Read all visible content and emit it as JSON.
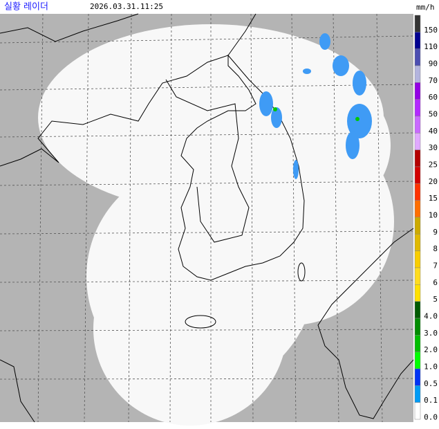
{
  "header": {
    "title": "실황 레이더",
    "time": "2026.03.31.11:25",
    "unit": "mm/h"
  },
  "legend": [
    {
      "label": "150",
      "color": "#333333"
    },
    {
      "label": "110",
      "color": "#000090"
    },
    {
      "label": "90",
      "color": "#4c4eb1"
    },
    {
      "label": "70",
      "color": "#b3b4de"
    },
    {
      "label": "60",
      "color": "#9300e4"
    },
    {
      "label": "50",
      "color": "#b329ff"
    },
    {
      "label": "40",
      "color": "#c969ff"
    },
    {
      "label": "30",
      "color": "#e0a9ff"
    },
    {
      "label": "25",
      "color": "#b40000"
    },
    {
      "label": "20",
      "color": "#d20000"
    },
    {
      "label": "15",
      "color": "#ff3200"
    },
    {
      "label": "10",
      "color": "#ff6e00"
    },
    {
      "label": "9",
      "color": "#ccaa00"
    },
    {
      "label": "8",
      "color": "#e0b900"
    },
    {
      "label": "7",
      "color": "#f9cd00"
    },
    {
      "label": "6",
      "color": "#ffdc1f"
    },
    {
      "label": "5",
      "color": "#ffe100"
    },
    {
      "label": "4.0",
      "color": "#005a00"
    },
    {
      "label": "3.0",
      "color": "#008c00"
    },
    {
      "label": "2.0",
      "color": "#00be00"
    },
    {
      "label": "1.0",
      "color": "#00ff00"
    },
    {
      "label": "0.5",
      "color": "#0033f5"
    },
    {
      "label": "0.1",
      "color": "#009bf5"
    },
    {
      "label": "0.0",
      "color": "#ffffff"
    }
  ]
}
